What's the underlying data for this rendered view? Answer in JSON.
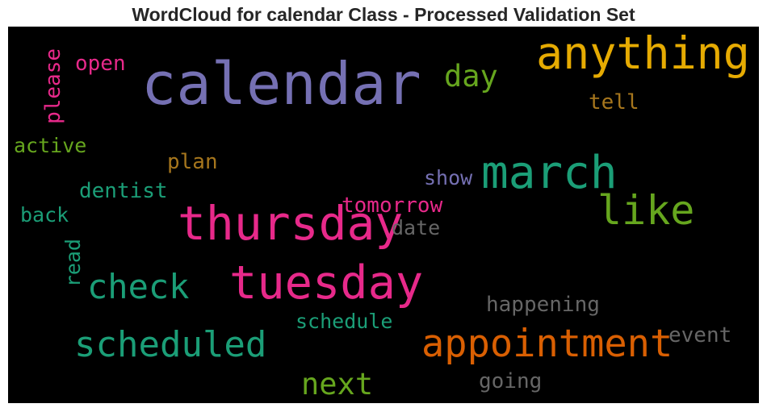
{
  "title": "WordCloud for calendar Class - Processed Validation Set",
  "words": [
    {
      "text": "calendar",
      "color": "#7570b3"
    },
    {
      "text": "anything",
      "color": "#e6ab02"
    },
    {
      "text": "march",
      "color": "#1b9e77"
    },
    {
      "text": "thursday",
      "color": "#e7298a"
    },
    {
      "text": "tuesday",
      "color": "#e7298a"
    },
    {
      "text": "like",
      "color": "#66a61e"
    },
    {
      "text": "appointment",
      "color": "#d95f02"
    },
    {
      "text": "scheduled",
      "color": "#1b9e77"
    },
    {
      "text": "check",
      "color": "#1b9e77"
    },
    {
      "text": "next",
      "color": "#66a61e"
    },
    {
      "text": "day",
      "color": "#66a61e"
    },
    {
      "text": "open",
      "color": "#e7298a"
    },
    {
      "text": "please",
      "color": "#e7298a"
    },
    {
      "text": "active",
      "color": "#66a61e"
    },
    {
      "text": "tell",
      "color": "#a6761d"
    },
    {
      "text": "plan",
      "color": "#a6761d"
    },
    {
      "text": "dentist",
      "color": "#1b9e77"
    },
    {
      "text": "show",
      "color": "#7570b3"
    },
    {
      "text": "tomorrow",
      "color": "#e7298a"
    },
    {
      "text": "back",
      "color": "#1b9e77"
    },
    {
      "text": "date",
      "color": "#666666"
    },
    {
      "text": "read",
      "color": "#1b9e77"
    },
    {
      "text": "happening",
      "color": "#666666"
    },
    {
      "text": "schedule",
      "color": "#1b9e77"
    },
    {
      "text": "event",
      "color": "#666666"
    },
    {
      "text": "going",
      "color": "#666666"
    }
  ]
}
